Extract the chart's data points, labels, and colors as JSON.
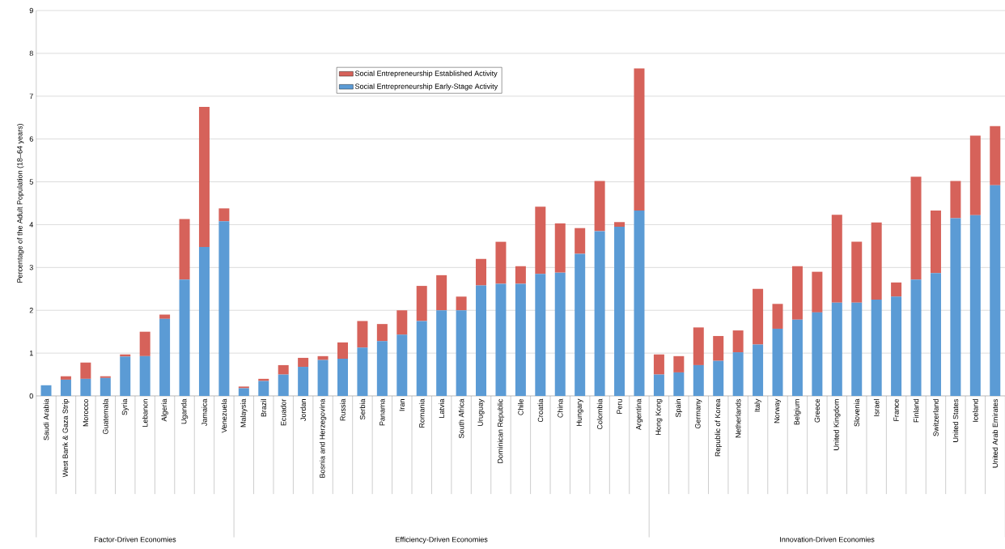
{
  "chart_data": {
    "type": "bar",
    "stacked": true,
    "ylabel": "Percentage of the Adult Population (18–64 years)",
    "categories": [
      "Saudi Arabia",
      "West Bank & Gaza Strip",
      "Morocco",
      "Guatemala",
      "Syria",
      "Lebanon",
      "Algeria",
      "Uganda",
      "Jamaica",
      "Venezuela",
      "Malaysia",
      "Brazil",
      "Ecuador",
      "Jordan",
      "Bosnia and Herzegovina",
      "Russia",
      "Serbia",
      "Panama",
      "Iran",
      "Romania",
      "Latvia",
      "South Africa",
      "Uruguay",
      "Dominican Republic",
      "Chile",
      "Croatia",
      "China",
      "Hungary",
      "Colombia",
      "Peru",
      "Argentina",
      "Hong Kong",
      "Spain",
      "Germany",
      "Republic of Korea",
      "Netherlands",
      "Italy",
      "Norway",
      "Belgium",
      "Greece",
      "United Kingdom",
      "Slovenia",
      "Israel",
      "France",
      "Finland",
      "Switzerland",
      "United States",
      "Iceland",
      "United Arab Emirates"
    ],
    "series": [
      {
        "name": "Social Entrepreneurship Early-Stage Activity",
        "color": "#5b9bd5",
        "values": [
          0.25,
          0.38,
          0.4,
          0.42,
          0.92,
          0.93,
          1.8,
          2.72,
          3.48,
          4.08,
          0.18,
          0.35,
          0.5,
          0.68,
          0.84,
          0.87,
          1.13,
          1.28,
          1.43,
          1.75,
          2.0,
          2.0,
          2.58,
          2.62,
          2.62,
          2.85,
          2.88,
          3.32,
          3.85,
          3.95,
          4.33,
          0.5,
          0.55,
          0.72,
          0.82,
          1.02,
          1.2,
          1.57,
          1.78,
          1.95,
          2.18,
          2.18,
          2.25,
          2.32,
          2.72,
          2.87,
          4.15,
          4.22,
          4.92
        ]
      },
      {
        "name": "Social Entrepreneurship Established Activity",
        "color": "#d6625a",
        "values": [
          0,
          0.08,
          0.38,
          0.04,
          0.05,
          0.57,
          0.1,
          1.41,
          3.27,
          0.3,
          0.04,
          0.05,
          0.22,
          0.21,
          0.09,
          0.38,
          0.62,
          0.4,
          0.57,
          0.82,
          0.82,
          0.32,
          0.62,
          0.98,
          0.41,
          1.57,
          1.15,
          0.6,
          1.17,
          0.11,
          3.32,
          0.47,
          0.38,
          0.88,
          0.58,
          0.51,
          1.3,
          0.58,
          1.25,
          0.95,
          2.05,
          1.42,
          1.8,
          0.33,
          2.4,
          1.46,
          0.87,
          1.86,
          1.38
        ]
      }
    ],
    "ylim": [
      0,
      9
    ],
    "yticks": [
      0,
      1,
      2,
      3,
      4,
      5,
      6,
      7,
      8,
      9
    ],
    "grid": "y",
    "legend": "top",
    "annotations": [
      "Factor-Driven Economies",
      "Efficiency-Driven Economies",
      "Innovation-Driven Economies"
    ]
  }
}
